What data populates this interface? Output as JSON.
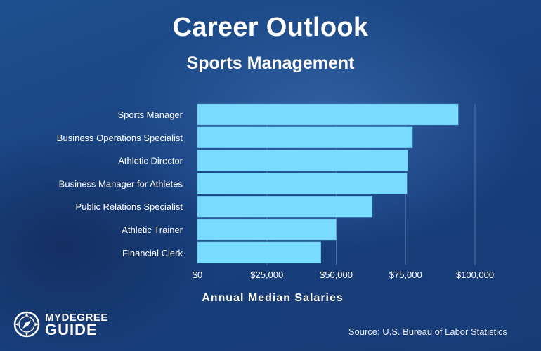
{
  "title": "Career Outlook",
  "subtitle": "Sports Management",
  "source": "Source: U.S. Bureau of Labor Statistics",
  "logo": {
    "top": "MYDEGREE",
    "bottom": "GUIDE",
    "icon": "compass-icon"
  },
  "colors": {
    "bar": "#79dbff",
    "text": "#ffffff",
    "grid": "#6f8fc0"
  },
  "chart_data": {
    "type": "bar",
    "orientation": "horizontal",
    "title": "Career Outlook",
    "subtitle": "Sports Management",
    "xlabel": "Annual Median Salaries",
    "ylabel": "",
    "categories": [
      "Sports Manager",
      "Business Operations Specialist",
      "Athletic Director",
      "Business Manager for Athletes",
      "Public Relations Specialist",
      "Athletic Trainer",
      "Financial Clerk"
    ],
    "values": [
      94000,
      77500,
      75800,
      75500,
      63000,
      50000,
      44500
    ],
    "xlim": [
      0,
      100000
    ],
    "xticks": [
      0,
      25000,
      50000,
      75000,
      100000
    ],
    "xtick_labels": [
      "$0",
      "$25,000",
      "$50,000",
      "$75,000",
      "$100,000"
    ],
    "grid": true,
    "legend": "none"
  }
}
